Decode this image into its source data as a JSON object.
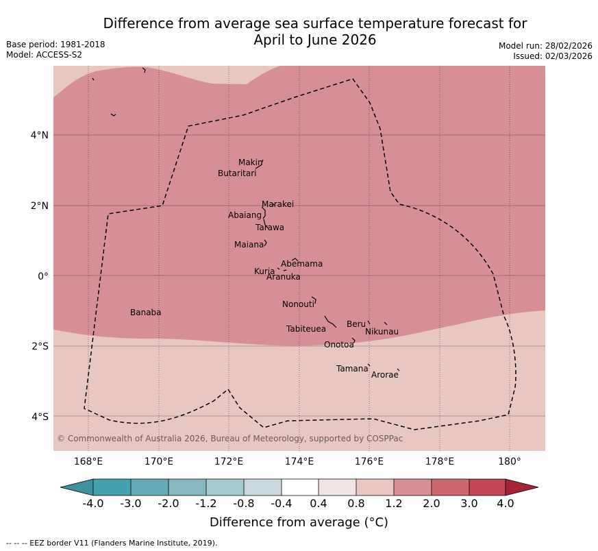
{
  "title": {
    "line1": "Difference from average sea surface temperature forecast for",
    "line2": "April to June 2026"
  },
  "meta_left": {
    "base_period": "Base period: 1981-2018",
    "model": "Model: ACCESS-S2"
  },
  "meta_right": {
    "model_run": "Model run: 28/02/2026",
    "issued": "Issued: 02/03/2026"
  },
  "axes": {
    "lat_labels": [
      "4°N",
      "2°N",
      "0°",
      "2°S",
      "4°S"
    ],
    "lon_labels": [
      "168°E",
      "170°E",
      "172°E",
      "174°E",
      "176°E",
      "178°E",
      "180°"
    ]
  },
  "places": [
    {
      "name": "Makin"
    },
    {
      "name": "Butaritari"
    },
    {
      "name": "Marakei"
    },
    {
      "name": "Abaiang"
    },
    {
      "name": "Tarawa"
    },
    {
      "name": "Maiana"
    },
    {
      "name": "Abemama"
    },
    {
      "name": "Kuria"
    },
    {
      "name": "Aranuka"
    },
    {
      "name": "Nonouti"
    },
    {
      "name": "Banaba"
    },
    {
      "name": "Beru"
    },
    {
      "name": "Nikunau"
    },
    {
      "name": "Tabiteuea"
    },
    {
      "name": "Onotoa"
    },
    {
      "name": "Tamana"
    },
    {
      "name": "Arorae"
    }
  ],
  "copyright": "© Commonwealth of Australia 2026, Bureau of Meteorology, supported by COSPPac",
  "colorbar": {
    "ticks": [
      "-4.0",
      "-3.0",
      "-2.0",
      "-1.2",
      "-0.8",
      "-0.4",
      "0.4",
      "0.8",
      "1.2",
      "2.0",
      "3.0",
      "4.0"
    ],
    "colors": [
      "#3f8f9e",
      "#45a1b0",
      "#67abb8",
      "#88b7c2",
      "#a8c9cd",
      "#c8d8dc",
      "#ffffff",
      "#efe6e3",
      "#e8c7c2",
      "#d68f96",
      "#cd6870",
      "#c24653",
      "#a8233a"
    ],
    "title": "Difference from average (°C)"
  },
  "footer": "--  --  -- EEZ border V11 (Flanders Marine Institute, 2019)."
}
